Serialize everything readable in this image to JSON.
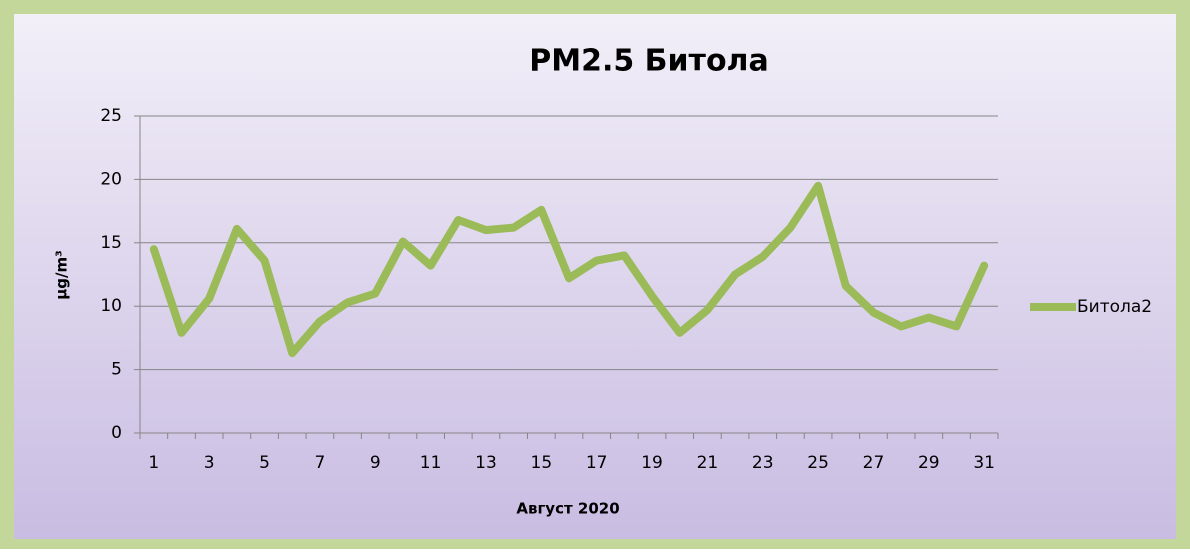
{
  "chart_data": {
    "type": "line",
    "title": "PM2.5 Битола",
    "y_label": "µg/m³",
    "x_label": "Август 2020",
    "categories": [
      "1",
      null,
      "3",
      null,
      "5",
      null,
      "7",
      null,
      "9",
      null,
      "11",
      null,
      "13",
      null,
      "15",
      null,
      "17",
      null,
      "19",
      null,
      "21",
      null,
      "23",
      null,
      "25",
      null,
      "27",
      null,
      "29",
      null,
      "31"
    ],
    "series": [
      {
        "name": "Битола2",
        "color": "#9bbb59",
        "values": [
          14.5,
          7.9,
          10.6,
          16.1,
          13.6,
          6.3,
          8.8,
          10.3,
          11.0,
          15.1,
          13.2,
          16.8,
          16.0,
          16.2,
          17.6,
          12.2,
          13.6,
          14.0,
          10.8,
          7.9,
          9.7,
          12.5,
          13.9,
          16.2,
          19.5,
          11.6,
          9.5,
          8.4,
          9.1,
          8.4,
          13.2
        ]
      }
    ],
    "ylim": [
      0,
      25
    ],
    "yticks": [
      0,
      5,
      10,
      15,
      20,
      25
    ],
    "grid": true,
    "legend": "right"
  }
}
